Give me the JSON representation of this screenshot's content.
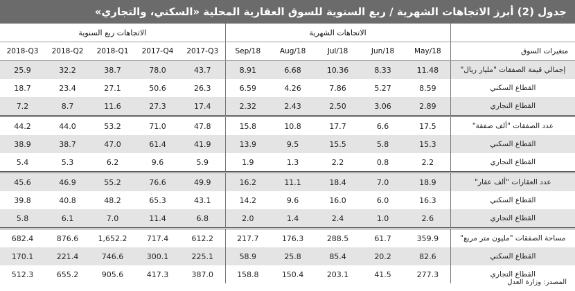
{
  "title": "جدول (2) أبرز الاتجاهات الشهرية / ربع السنوية للسوق العقارية المحلية «السكني، والتجاري»",
  "group_headers": {
    "quarterly": "الاتجاهات ربع السنوية",
    "monthly": "الاتجاهات الشهرية",
    "variables": ""
  },
  "column_headers": {
    "q": [
      "2018-Q3",
      "2018-Q2",
      "2018-Q1",
      "2017-Q4",
      "2017-Q3"
    ],
    "m": [
      "Sep/18",
      "Aug/18",
      "Jul/18",
      "Jun/18",
      "May/18"
    ],
    "label": "متغيرات السوق"
  },
  "rows": [
    {
      "label": "إجمالي قيمة الصفقات \"مليار ريال\"",
      "q": [
        "25.9",
        "32.2",
        "38.7",
        "78.0",
        "43.7"
      ],
      "m": [
        "8.91",
        "6.68",
        "10.36",
        "8.33",
        "11.48"
      ]
    },
    {
      "label": "القطاع السكني",
      "q": [
        "18.7",
        "23.4",
        "27.1",
        "50.6",
        "26.3"
      ],
      "m": [
        "6.59",
        "4.26",
        "7.86",
        "5.27",
        "8.59"
      ]
    },
    {
      "label": "القطاع التجاري",
      "q": [
        "7.2",
        "8.7",
        "11.6",
        "27.3",
        "17.4"
      ],
      "m": [
        "2.32",
        "2.43",
        "2.50",
        "3.06",
        "2.89"
      ]
    },
    {
      "label": "عدد الصفقات \"ألف صفقة\"",
      "q": [
        "44.2",
        "44.0",
        "53.2",
        "71.0",
        "47.8"
      ],
      "m": [
        "15.8",
        "10.8",
        "17.7",
        "6.6",
        "17.5"
      ]
    },
    {
      "label": "القطاع السكني",
      "q": [
        "38.9",
        "38.7",
        "47.0",
        "61.4",
        "41.9"
      ],
      "m": [
        "13.9",
        "9.5",
        "15.5",
        "5.8",
        "15.3"
      ]
    },
    {
      "label": "القطاع التجاري",
      "q": [
        "5.4",
        "5.3",
        "6.2",
        "9.6",
        "5.9"
      ],
      "m": [
        "1.9",
        "1.3",
        "2.2",
        "0.8",
        "2.2"
      ]
    },
    {
      "label": "عدد العقارات \"ألف عقار\"",
      "q": [
        "45.6",
        "46.9",
        "55.2",
        "76.6",
        "49.9"
      ],
      "m": [
        "16.2",
        "11.1",
        "18.4",
        "7.0",
        "18.9"
      ]
    },
    {
      "label": "القطاع السكني",
      "q": [
        "39.8",
        "40.8",
        "48.2",
        "65.3",
        "43.1"
      ],
      "m": [
        "14.2",
        "9.6",
        "16.0",
        "6.0",
        "16.3"
      ]
    },
    {
      "label": "القطاع التجاري",
      "q": [
        "5.8",
        "6.1",
        "7.0",
        "11.4",
        "6.8"
      ],
      "m": [
        "2.0",
        "1.4",
        "2.4",
        "1.0",
        "2.6"
      ]
    },
    {
      "label": "مساحة الصفقات \"مليون متر مربع\"",
      "q": [
        "682.4",
        "876.6",
        "1,652.2",
        "717.4",
        "612.2"
      ],
      "m": [
        "217.7",
        "176.3",
        "288.5",
        "61.7",
        "359.9"
      ]
    },
    {
      "label": "القطاع السكني",
      "q": [
        "170.1",
        "221.4",
        "746.6",
        "300.1",
        "225.1"
      ],
      "m": [
        "58.9",
        "25.8",
        "85.4",
        "20.2",
        "82.6"
      ]
    },
    {
      "label": "القطاع التجاري",
      "q": [
        "512.3",
        "655.2",
        "905.6",
        "417.3",
        "387.0"
      ],
      "m": [
        "158.8",
        "150.4",
        "203.1",
        "41.5",
        "277.3"
      ]
    }
  ],
  "source": "المصدر: وزارة العدل",
  "colors": {
    "title_bg": "#6b6b6b",
    "shaded_row": "#e4e4e4"
  }
}
